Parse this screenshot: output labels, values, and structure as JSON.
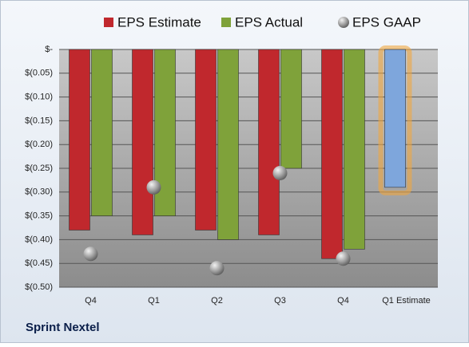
{
  "chart_data": {
    "type": "bar",
    "categories": [
      "Q4",
      "Q1",
      "Q2",
      "Q3",
      "Q4",
      "Q1 Estimate"
    ],
    "series": [
      {
        "name": "EPS Estimate",
        "type": "bar",
        "color": "#c0282d",
        "colors": [
          "#c0282d",
          "#c0282d",
          "#c0282d",
          "#c0282d",
          "#c0282d",
          "#7ea6dc"
        ],
        "values": [
          -0.38,
          -0.39,
          -0.38,
          -0.39,
          -0.44,
          -0.29
        ]
      },
      {
        "name": "EPS Actual",
        "type": "bar",
        "color": "#7fa23a",
        "values": [
          -0.35,
          -0.35,
          -0.4,
          -0.25,
          -0.42,
          null
        ]
      },
      {
        "name": "EPS GAAP",
        "type": "scatter",
        "color": "#9a9a9a",
        "values": [
          -0.43,
          -0.29,
          -0.46,
          -0.26,
          -0.44,
          null
        ]
      }
    ],
    "ylim": [
      -0.5,
      0
    ],
    "yticks": [
      {
        "value": 0,
        "label": "$-"
      },
      {
        "value": -0.05,
        "label": "$(0.05)"
      },
      {
        "value": -0.1,
        "label": "$(0.10)"
      },
      {
        "value": -0.15,
        "label": "$(0.15)"
      },
      {
        "value": -0.2,
        "label": "$(0.20)"
      },
      {
        "value": -0.25,
        "label": "$(0.25)"
      },
      {
        "value": -0.3,
        "label": "$(0.30)"
      },
      {
        "value": -0.35,
        "label": "$(0.35)"
      },
      {
        "value": -0.4,
        "label": "$(0.40)"
      },
      {
        "value": -0.45,
        "label": "$(0.45)"
      },
      {
        "value": -0.5,
        "label": "$(0.50)"
      }
    ],
    "grid": true,
    "legend": "top",
    "footer": "Sprint Nextel"
  }
}
